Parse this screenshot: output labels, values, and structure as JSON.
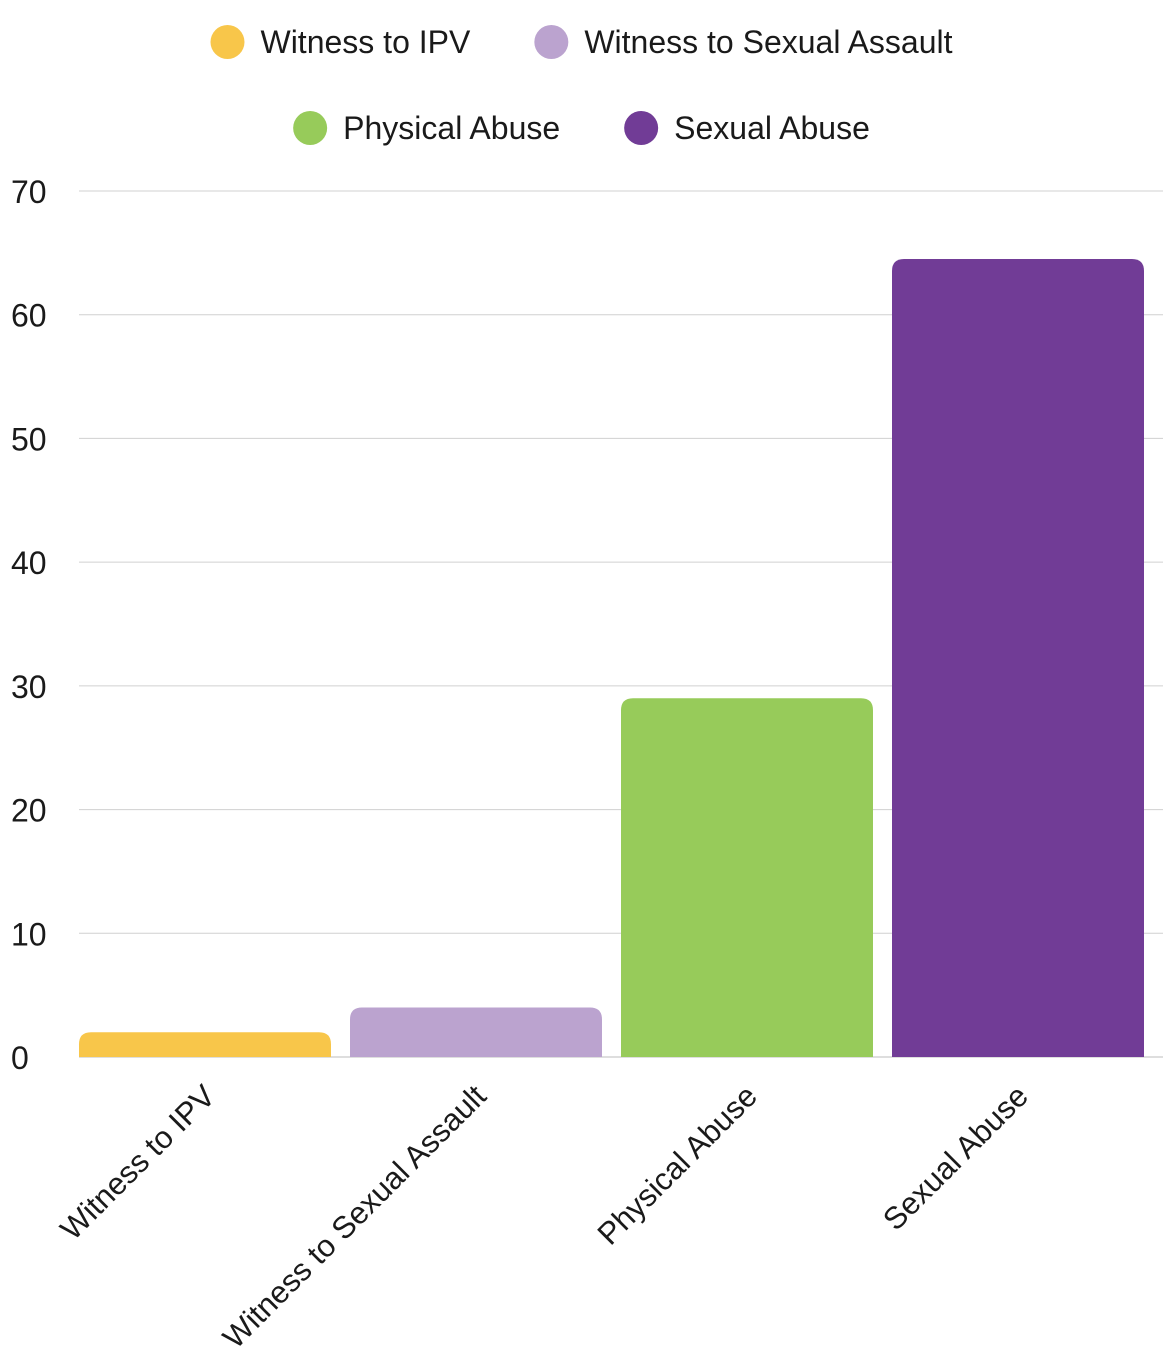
{
  "chart_data": {
    "type": "bar",
    "title": "",
    "xlabel": "",
    "ylabel": "",
    "categories": [
      "Witness to IPV",
      "Witness to Sexual Assault",
      "Physical Abuse",
      "Sexual Abuse"
    ],
    "values": [
      2,
      4,
      29,
      64.5
    ],
    "colors": [
      "#f8c64a",
      "#bba3cf",
      "#97cb5a",
      "#713c96"
    ],
    "ylim": [
      0,
      70
    ],
    "yticks": [
      0,
      10,
      20,
      30,
      40,
      50,
      60,
      70
    ],
    "grid": true,
    "legend": {
      "position": "top-center",
      "entries": [
        {
          "label": "Witness to IPV",
          "color": "#f8c64a"
        },
        {
          "label": "Witness to Sexual Assault",
          "color": "#bba3cf"
        },
        {
          "label": "Physical Abuse",
          "color": "#97cb5a"
        },
        {
          "label": "Sexual Abuse",
          "color": "#713c96"
        }
      ]
    }
  }
}
